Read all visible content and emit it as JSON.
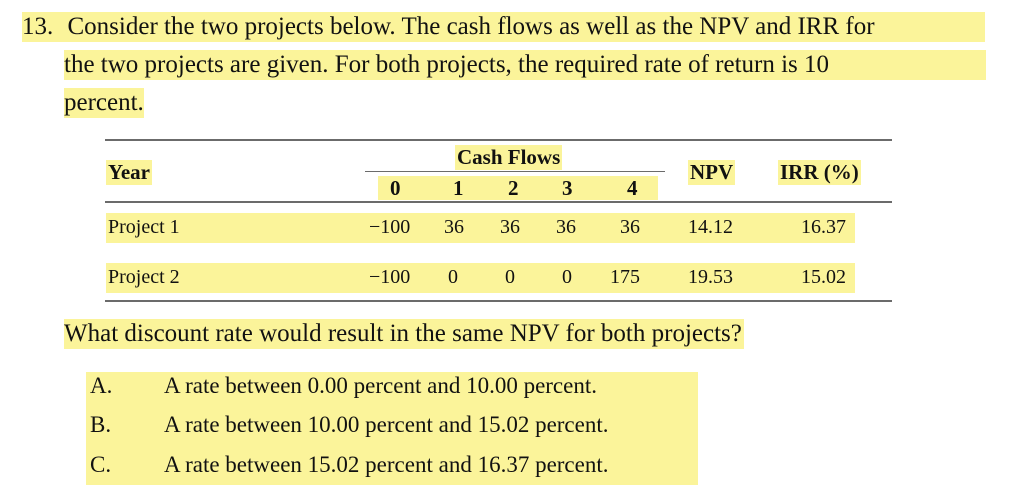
{
  "question": {
    "number": "13.",
    "lines": [
      "Consider the two projects below. The cash flows as well as the NPV and IRR for",
      "the two projects are given. For both projects, the required rate of return is 10",
      "percent."
    ]
  },
  "table": {
    "year_label": "Year",
    "cash_flows_label": "Cash Flows",
    "periods": [
      "0",
      "1",
      "2",
      "3",
      "4"
    ],
    "npv_label": "NPV",
    "irr_label": "IRR (%)",
    "rows": [
      {
        "name": "Project 1",
        "flows": [
          "−100",
          "36",
          "36",
          "36",
          "36"
        ],
        "npv": "14.12",
        "irr": "16.37"
      },
      {
        "name": "Project 2",
        "flows": [
          "−100",
          "0",
          "0",
          "0",
          "175"
        ],
        "npv": "19.53",
        "irr": "15.02"
      }
    ]
  },
  "prompt": "What discount rate would result in the same NPV for both projects?",
  "options": [
    {
      "letter": "A.",
      "text": "A rate between 0.00 percent and 10.00 percent."
    },
    {
      "letter": "B.",
      "text": "A rate between 10.00 percent and 15.02 percent."
    },
    {
      "letter": "C.",
      "text": "A rate between 15.02 percent and 16.37 percent."
    }
  ]
}
